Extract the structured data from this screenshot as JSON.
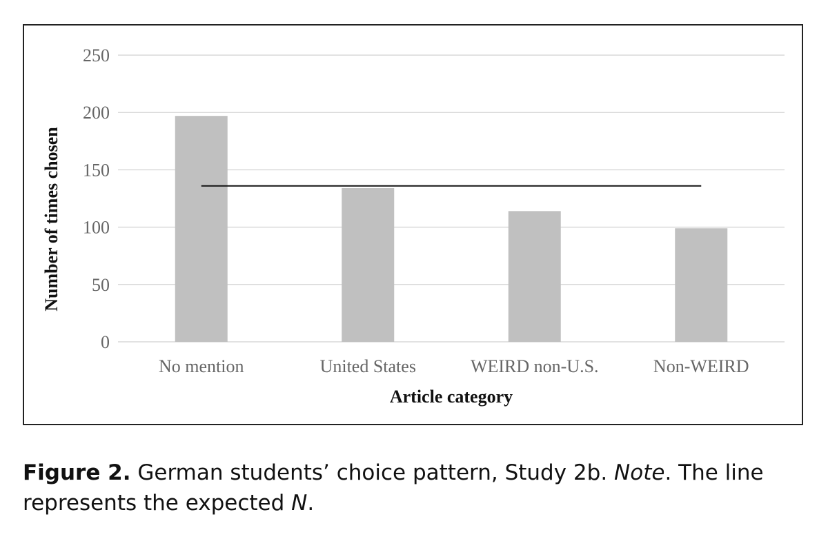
{
  "chart_data": {
    "type": "bar",
    "categories": [
      "No mention",
      "United States",
      "WEIRD non-U.S.",
      "Non-WEIRD"
    ],
    "values": [
      197,
      134,
      114,
      99
    ],
    "reference_line": 136,
    "xlabel": "Article category",
    "ylabel": "Number of times chosen",
    "ylim": [
      0,
      250
    ],
    "yticks": [
      0,
      50,
      100,
      150,
      200,
      250
    ],
    "grid": true,
    "colors": {
      "bar": "#c0c0c0",
      "line": "#111111",
      "grid": "#d9d9d9"
    }
  },
  "caption": {
    "label": "Figure 2.",
    "text1": " German students’ choice pattern, Study 2b. ",
    "note": "Note",
    "text2": ". The line represents the expected ",
    "n": "N",
    "text3": "."
  }
}
